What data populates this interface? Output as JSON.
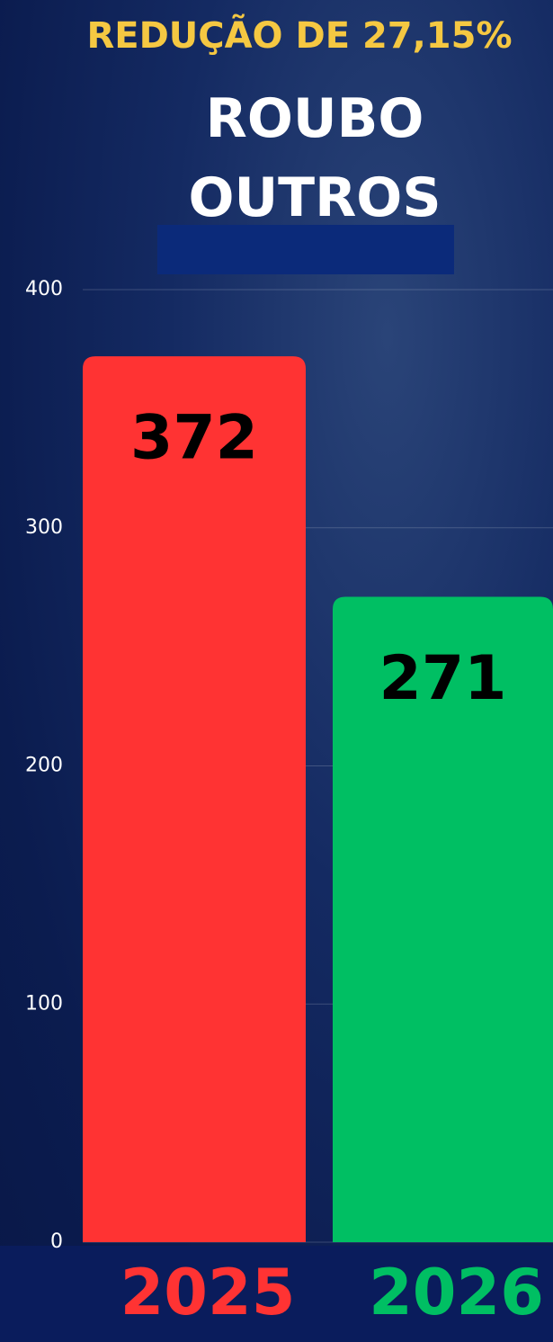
{
  "chart_data": {
    "type": "bar",
    "annotation": "REDUÇÃO DE 27,15%",
    "title": "ROUBO OUTROS",
    "categories": [
      "2025",
      "2026"
    ],
    "values": [
      372,
      271
    ],
    "colors": [
      "#ff3333",
      "#00bf63"
    ],
    "ylim": [
      0,
      400
    ],
    "yticks": [
      0,
      100,
      200,
      300,
      400
    ],
    "grid": true
  }
}
